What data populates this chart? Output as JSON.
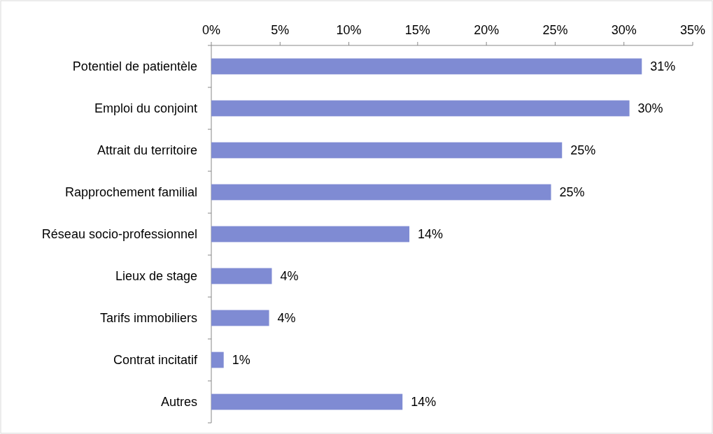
{
  "chart_data": {
    "type": "bar",
    "orientation": "horizontal",
    "categories": [
      "Potentiel de patientèle",
      "Emploi du conjoint",
      "Attrait du territoire",
      "Rapprochement familial",
      "Réseau socio-professionnel",
      "Lieux de stage",
      "Tarifs immobiliers",
      "Contrat incitatif",
      "Autres"
    ],
    "values": [
      31.3,
      30.4,
      25.5,
      24.7,
      14.4,
      4.4,
      4.2,
      0.9,
      13.9
    ],
    "value_labels": [
      "31%",
      "30%",
      "25%",
      "25%",
      "14%",
      "4%",
      "4%",
      "1%",
      "14%"
    ],
    "color": "#7f8bd3",
    "xlim": [
      0,
      35
    ],
    "xticks": [
      {
        "value": 0,
        "label": "0%"
      },
      {
        "value": 5,
        "label": "5%"
      },
      {
        "value": 10,
        "label": "10%"
      },
      {
        "value": 15,
        "label": "15%"
      },
      {
        "value": 20,
        "label": "20%"
      },
      {
        "value": 25,
        "label": "25%"
      },
      {
        "value": 30,
        "label": "30%"
      },
      {
        "value": 35,
        "label": "35%"
      }
    ],
    "grid": false
  }
}
